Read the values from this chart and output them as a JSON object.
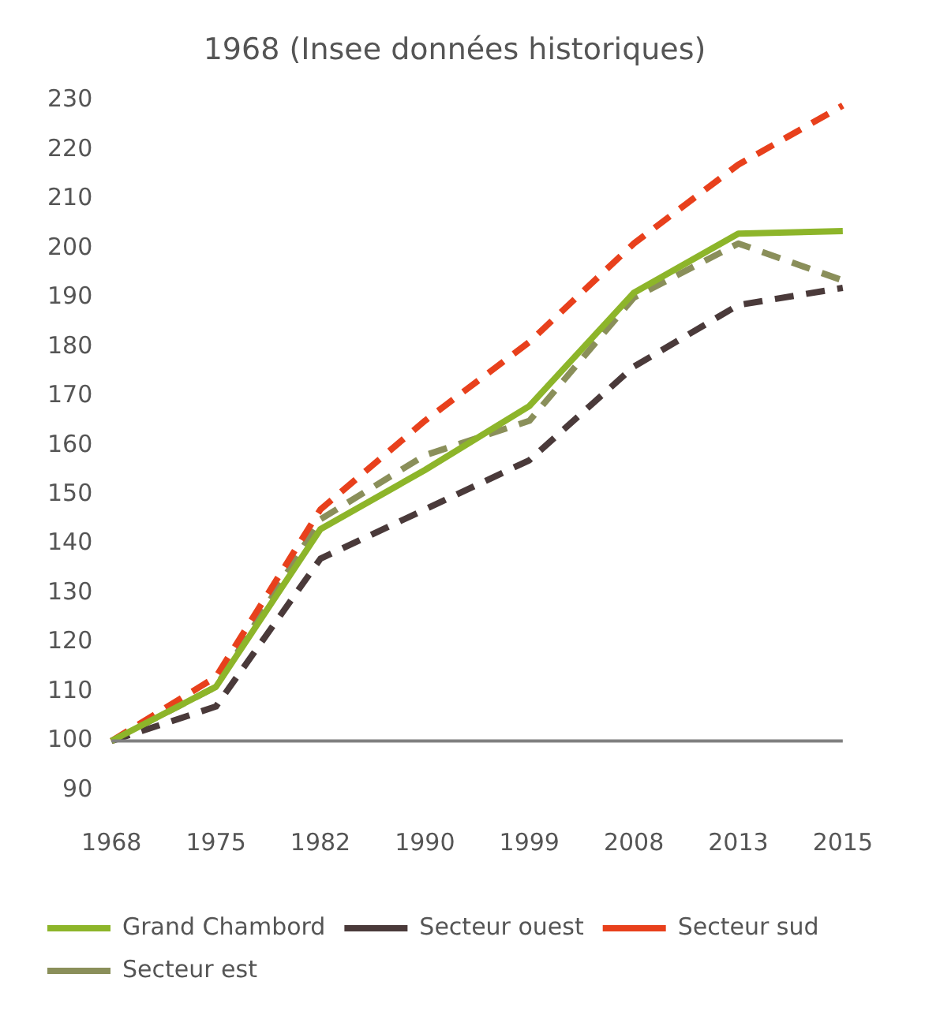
{
  "chart_data": {
    "type": "line",
    "title": "1968 (Insee données historiques)",
    "categories": [
      "1968",
      "1975",
      "1982",
      "1990",
      "1999",
      "2008",
      "2013",
      "2015"
    ],
    "series": [
      {
        "name": "Grand Chambord",
        "color": "#8db52a",
        "line_style": "solid",
        "values": [
          100,
          111,
          143,
          155,
          168,
          191,
          203,
          203.5
        ]
      },
      {
        "name": "Secteur ouest",
        "color": "#4a3a3a",
        "line_style": "dashed",
        "values": [
          100,
          107,
          137,
          147,
          157,
          176,
          188.5,
          192
        ]
      },
      {
        "name": "Secteur sud",
        "color": "#e8401c",
        "line_style": "dashed",
        "values": [
          100,
          113,
          147,
          165,
          181,
          201,
          217,
          229
        ]
      },
      {
        "name": "Secteur est",
        "color": "#8a8f5a",
        "line_style": "dashed",
        "values": [
          100,
          111,
          145,
          158,
          165,
          190,
          201,
          193.5
        ]
      }
    ],
    "ylim": [
      90,
      230
    ],
    "yticks": [
      90,
      100,
      110,
      120,
      130,
      140,
      150,
      160,
      170,
      180,
      190,
      200,
      210,
      220,
      230
    ],
    "ref_lines": [
      {
        "axis": "y",
        "value": 100,
        "color": "#808080"
      }
    ],
    "grid": false,
    "legend": "bottom",
    "marker": "none"
  }
}
